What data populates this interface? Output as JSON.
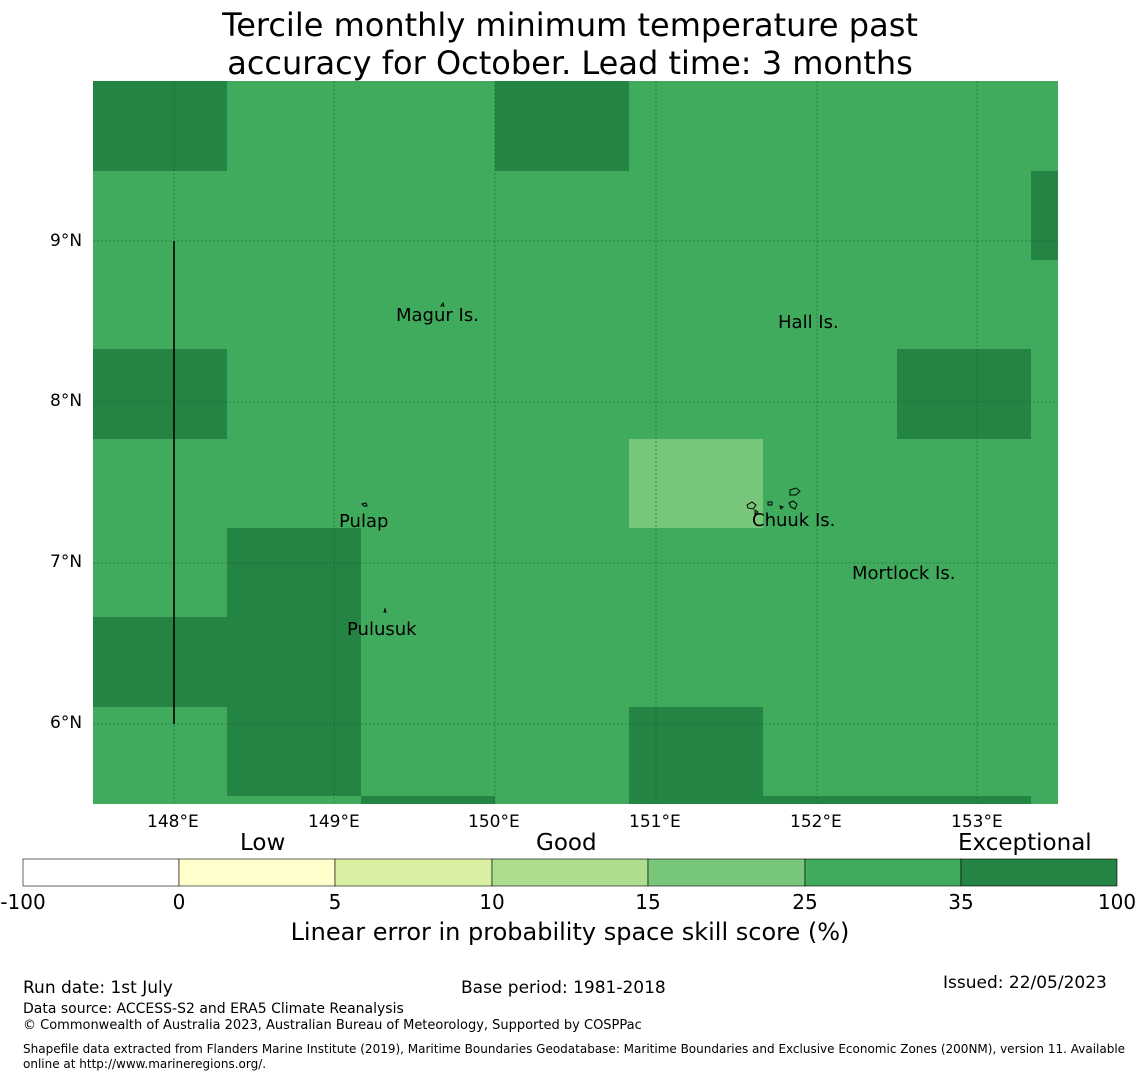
{
  "title": {
    "line1": "Tercile monthly minimum temperature past",
    "line2": "accuracy for October. Lead time: 3 months"
  },
  "map": {
    "lon_ticks": [
      "148°E",
      "149°E",
      "150°E",
      "151°E",
      "152°E",
      "153°E"
    ],
    "lat_ticks": [
      "9°N",
      "8°N",
      "7°N",
      "6°N"
    ],
    "place_labels": [
      "Magur Is.",
      "Hall Is.",
      "Pulap",
      "Chuuk Is.",
      "Mortlock Is.",
      "Pulusuk"
    ],
    "colors": {
      "band_25_35": "#41ab5d",
      "band_35_100": "#238443",
      "band_15_25": "#78c679"
    },
    "grid": true
  },
  "colorbar": {
    "categories": [
      "Low",
      "Good",
      "Exceptional"
    ],
    "ticks": [
      "-100",
      "0",
      "5",
      "10",
      "15",
      "25",
      "35",
      "100"
    ],
    "colors": [
      "#ffffff",
      "#ffffcc",
      "#d9f0a3",
      "#addd8e",
      "#78c679",
      "#41ab5d",
      "#238443"
    ],
    "title": "Linear error in probability space skill score (%)"
  },
  "footer": {
    "run_date": "Run date: 1st July",
    "base_period": "Base period: 1981-2018",
    "issued": "Issued: 22/05/2023",
    "data_source": "Data source: ACCESS-S2 and ERA5 Climate Reanalysis",
    "copyright": "© Commonwealth of Australia 2023, Australian Bureau of Meteorology, Supported by COSPPac",
    "shapefile": "Shapefile data extracted from Flanders Marine Institute (2019), Maritime Boundaries Geodatabase: Maritime Boundaries and Exclusive Economic Zones (200NM), version 11. Available",
    "shapefile2": "online at http://www.marineregions.org/."
  }
}
